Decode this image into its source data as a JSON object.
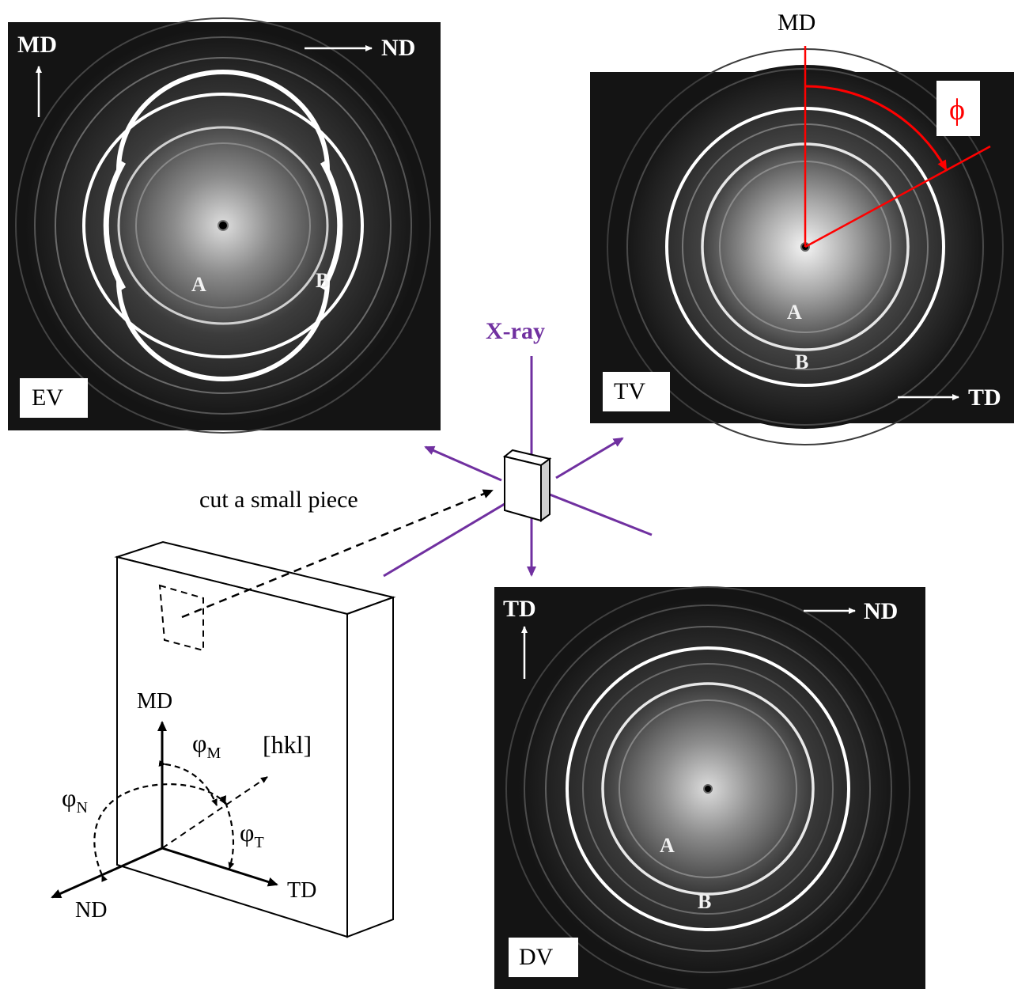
{
  "patterns": {
    "ev": {
      "view_label": "EV",
      "vertical_axis": "MD",
      "horizontal_axis": "ND",
      "ring_inner": "A",
      "ring_outer": "B"
    },
    "tv": {
      "view_label": "TV",
      "vertical_axis": "MD",
      "horizontal_axis": "TD",
      "ring_inner": "A",
      "ring_outer": "B",
      "angle_symbol": "ϕ"
    },
    "dv": {
      "view_label": "DV",
      "vertical_axis": "TD",
      "horizontal_axis": "ND",
      "ring_inner": "A",
      "ring_outer": "B"
    }
  },
  "xray_label": "X-ray",
  "cut_label": "cut a small piece",
  "sample_axes": {
    "md": "MD",
    "td": "TD",
    "nd": "ND",
    "hkl": "[hkl]",
    "phi_m": "φ",
    "phi_m_sub": "M",
    "phi_n": "φ",
    "phi_n_sub": "N",
    "phi_t": "φ",
    "phi_t_sub": "T"
  },
  "colors": {
    "xray_purple": "#7030a0",
    "angle_red": "#ff0000",
    "detector_bg": "#141414",
    "ring_white": "#ffffff"
  }
}
